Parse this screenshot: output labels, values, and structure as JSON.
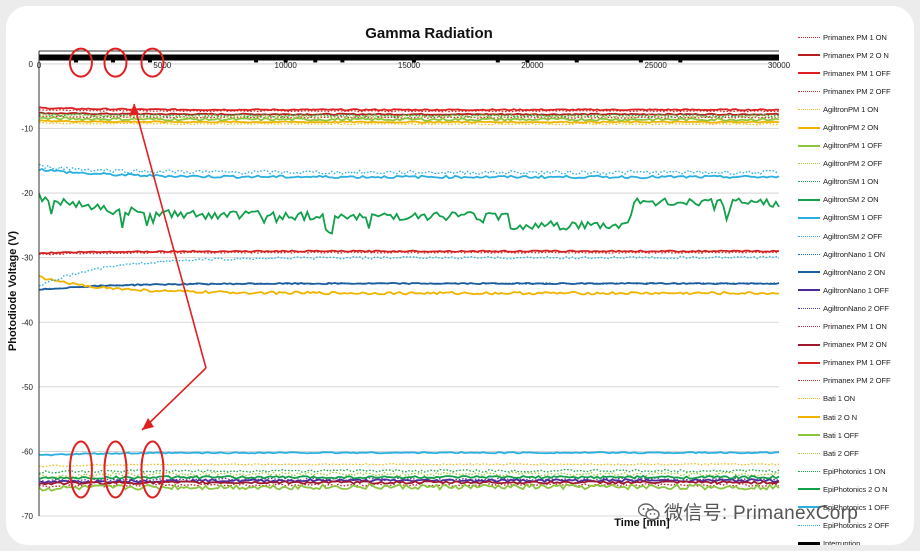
{
  "chart_data": {
    "type": "line",
    "title": "Gamma Radiation",
    "xlabel": "Time [min]",
    "ylabel": "Photodiode Voltage (V)",
    "xlim": [
      0,
      30000
    ],
    "ylim": [
      -70,
      2
    ],
    "xticks": [
      0,
      5000,
      10000,
      15000,
      20000,
      25000,
      30000
    ],
    "xtick_labels": [
      "0",
      "5000",
      "10000",
      "15000",
      "20000",
      "25000",
      "30000"
    ],
    "yticks": [
      0,
      -10,
      -20,
      -30,
      -40,
      -50,
      -60,
      -70
    ],
    "ytick_labels": [
      "0",
      "-10",
      "-20",
      "-30",
      "-40",
      "-50",
      "-60",
      "-70"
    ],
    "grid": "horizontal",
    "legend_position": "right",
    "series": [
      {
        "name": "Primanex PM 1 ON",
        "color": "#d42a2a",
        "dash": "dot",
        "level": -7.3,
        "start": -7.1,
        "noise": 0.1
      },
      {
        "name": "Primanex PM 2 O N",
        "color": "#b81e1e",
        "dash": "solid",
        "level": -7.8,
        "start": -7.6,
        "noise": 0.1
      },
      {
        "name": "Primanex PM 1 OFF",
        "color": "#e02020",
        "dash": "solid",
        "level": -7.1,
        "start": -6.8,
        "noise": 0.1
      },
      {
        "name": "Primanex PM 2 OFF",
        "color": "#d42a2a",
        "dash": "dot",
        "level": -8.3,
        "start": -8.1,
        "noise": 0.1
      },
      {
        "name": "AgiltronPM 1 ON",
        "color": "#f0c020",
        "dash": "dot",
        "level": -9.3,
        "start": -9.1,
        "noise": 0.1
      },
      {
        "name": "AgiltronPM 2 ON",
        "color": "#f0b400",
        "dash": "solid",
        "level": -9.0,
        "start": -8.8,
        "noise": 0.1
      },
      {
        "name": "AgiltronPM 1 OFF",
        "color": "#8cc63f",
        "dash": "solid",
        "level": -8.6,
        "start": -8.4,
        "noise": 0.2
      },
      {
        "name": "AgiltronPM 2 OFF",
        "color": "#a8cc3a",
        "dash": "dot",
        "level": -8.1,
        "start": -7.9,
        "noise": 0.2
      },
      {
        "name": "AgiltronSM 1 ON",
        "color": "#1aa84a",
        "dash": "dot",
        "level": -8.0,
        "start": -7.8,
        "noise": 0.2
      },
      {
        "name": "AgiltronSM 2 ON",
        "color": "#12a04a",
        "dash": "solid",
        "level": -23.5,
        "start": -20.5,
        "noise": 0.7
      },
      {
        "name": "AgiltronSM 1 OFF",
        "color": "#2ab0e0",
        "dash": "solid",
        "level": -17.5,
        "start": -16.3,
        "noise": 0.2
      },
      {
        "name": "AgiltronSM 2 OFF",
        "color": "#2ab0e0",
        "dash": "dot",
        "level": -16.8,
        "start": -15.8,
        "noise": 0.3
      },
      {
        "name": "AgiltronNano 1 ON",
        "color": "#1f6fb5",
        "dash": "dot",
        "level": -34.0,
        "start": -35.0,
        "noise": 0.1
      },
      {
        "name": "AgiltronNano 2 ON",
        "color": "#1a5c9e",
        "dash": "solid",
        "level": -34.0,
        "start": -35.0,
        "noise": 0.1
      },
      {
        "name": "AgiltronNano 1 OFF",
        "color": "#4b2a9a",
        "dash": "solid",
        "level": -64.5,
        "start": -64.8,
        "noise": 0.2
      },
      {
        "name": "AgiltronNano 2 OFF",
        "color": "#5a3aa8",
        "dash": "dot",
        "level": -64.3,
        "start": -64.6,
        "noise": 0.2
      },
      {
        "name": "Primanex PM 1 ON",
        "color": "#c02a3a",
        "dash": "dot",
        "level": -65.2,
        "start": -65.4,
        "noise": 0.2
      },
      {
        "name": "Primanex PM 2 ON",
        "color": "#a01830",
        "dash": "solid",
        "level": -64.8,
        "start": -65.0,
        "noise": 0.2
      },
      {
        "name": "Primanex PM 1 OFF",
        "color": "#d42020",
        "dash": "solid",
        "level": -29.0,
        "start": -29.3,
        "noise": 0.1
      },
      {
        "name": "Primanex PM 2 OFF",
        "color": "#d42a2a",
        "dash": "dot",
        "level": -29.2,
        "start": -29.5,
        "noise": 0.1
      },
      {
        "name": "Bati 1 ON",
        "color": "#f0c020",
        "dash": "dot",
        "level": -62.0,
        "start": -62.3,
        "noise": 0.1
      },
      {
        "name": "Bati 2 O N",
        "color": "#f0b400",
        "dash": "solid",
        "level": -35.5,
        "start": -33.0,
        "noise": 0.2
      },
      {
        "name": "Bati 1 OFF",
        "color": "#8cc63f",
        "dash": "solid",
        "level": -65.5,
        "start": -65.8,
        "noise": 0.4
      },
      {
        "name": "Bati 2 OFF",
        "color": "#a8cc3a",
        "dash": "dot",
        "level": -63.5,
        "start": -63.8,
        "noise": 0.3
      },
      {
        "name": "EpiPhotonics 1 ON",
        "color": "#1aa84a",
        "dash": "dot",
        "level": -63.0,
        "start": -63.2,
        "noise": 0.2
      },
      {
        "name": "EpiPhotonics 2 O N",
        "color": "#12a04a",
        "dash": "solid",
        "level": -64.0,
        "start": -64.2,
        "noise": 0.2
      },
      {
        "name": "EpiPhotonics 1 OFF",
        "color": "#2ab0e0",
        "dash": "solid",
        "level": -60.2,
        "start": -60.6,
        "noise": 0.1
      },
      {
        "name": "EpiPhotonics 2 OFF",
        "color": "#2ab0e0",
        "dash": "dot",
        "level": -30.0,
        "start": -34.5,
        "noise": 0.2
      },
      {
        "name": "Interruption",
        "color": "#000000",
        "dash": "solid",
        "level": 1.0,
        "start": 1.0,
        "noise": 0
      }
    ],
    "interruptions": [
      1500,
      3000,
      4500,
      8800,
      10000,
      11200,
      12300,
      15200,
      18600,
      19800,
      21800,
      24400,
      26000
    ],
    "circle_groups_x": [
      1700,
      3100,
      4600
    ]
  },
  "watermark": {
    "text": "微信号: PrimanexCorp"
  }
}
